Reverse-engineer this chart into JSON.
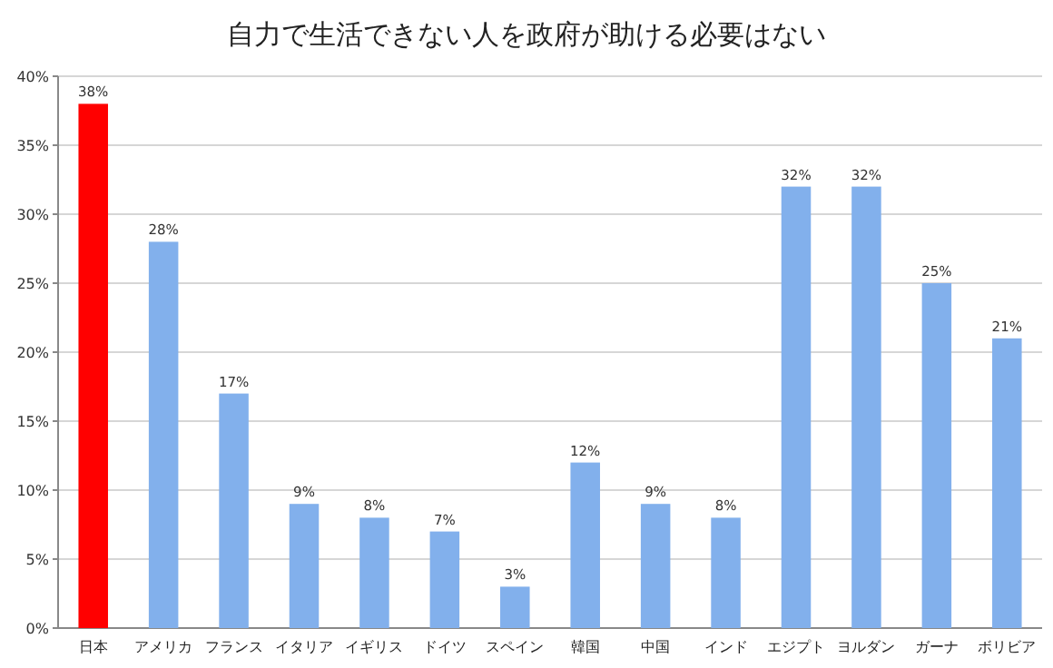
{
  "chart_data": {
    "type": "bar",
    "title": "自力で生活できない人を政府が助ける必要はない",
    "categories": [
      "日本",
      "アメリカ",
      "フランス",
      "イタリア",
      "イギリス",
      "ドイツ",
      "スペイン",
      "韓国",
      "中国",
      "インド",
      "エジプト",
      "ヨルダン",
      "ガーナ",
      "ボリビア"
    ],
    "values": [
      38,
      28,
      17,
      9,
      8,
      7,
      3,
      12,
      9,
      8,
      32,
      32,
      25,
      21
    ],
    "colors": [
      "#ff0000",
      "#82b0ec",
      "#82b0ec",
      "#82b0ec",
      "#82b0ec",
      "#82b0ec",
      "#82b0ec",
      "#82b0ec",
      "#82b0ec",
      "#82b0ec",
      "#82b0ec",
      "#82b0ec",
      "#82b0ec",
      "#82b0ec"
    ],
    "value_labels": [
      "38%",
      "28%",
      "17%",
      "9%",
      "8%",
      "7%",
      "3%",
      "12%",
      "9%",
      "8%",
      "32%",
      "32%",
      "25%",
      "21%"
    ],
    "ylim": [
      0,
      40
    ],
    "yticks": [
      {
        "value": 0,
        "label": "0%"
      },
      {
        "value": 5,
        "label": "5%"
      },
      {
        "value": 10,
        "label": "10%"
      },
      {
        "value": 15,
        "label": "15%"
      },
      {
        "value": 20,
        "label": "20%"
      },
      {
        "value": 25,
        "label": "25%"
      },
      {
        "value": 30,
        "label": "30%"
      },
      {
        "value": 35,
        "label": "35%"
      },
      {
        "value": 40,
        "label": "40%"
      }
    ],
    "grid": "y"
  }
}
